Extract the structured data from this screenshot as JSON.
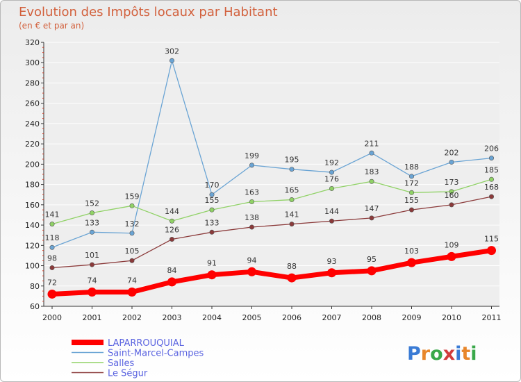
{
  "chart_data": {
    "type": "line",
    "title": "Evolution des Impôts locaux par Habitant",
    "subtitle": "(en € et par an)",
    "xlabel": "",
    "ylabel": "",
    "ylim": [
      60,
      320
    ],
    "yticks": [
      60,
      80,
      100,
      120,
      140,
      160,
      180,
      200,
      220,
      240,
      260,
      280,
      300,
      320
    ],
    "x": [
      "2000",
      "2001",
      "2002",
      "2003",
      "2004",
      "2005",
      "2006",
      "2007",
      "2008",
      "2009",
      "2010",
      "2011"
    ],
    "series": [
      {
        "name": "LAPARROUQUIAL",
        "color": "#ff0000",
        "values": [
          72,
          74,
          74,
          84,
          91,
          94,
          88,
          93,
          95,
          103,
          109,
          115
        ]
      },
      {
        "name": "Saint-Marcel-Campes",
        "color": "#6aa4d4",
        "values": [
          118,
          133,
          132,
          302,
          170,
          199,
          195,
          192,
          211,
          188,
          202,
          206
        ]
      },
      {
        "name": "Salles",
        "color": "#90d266",
        "values": [
          141,
          152,
          159,
          144,
          155,
          163,
          165,
          176,
          183,
          172,
          173,
          185
        ]
      },
      {
        "name": "Le Ségur",
        "color": "#8b3a3a",
        "values": [
          98,
          101,
          105,
          126,
          133,
          138,
          141,
          144,
          147,
          155,
          160,
          168
        ]
      }
    ],
    "legend_position": "bottom-left"
  },
  "logo_text": "Proxiti"
}
